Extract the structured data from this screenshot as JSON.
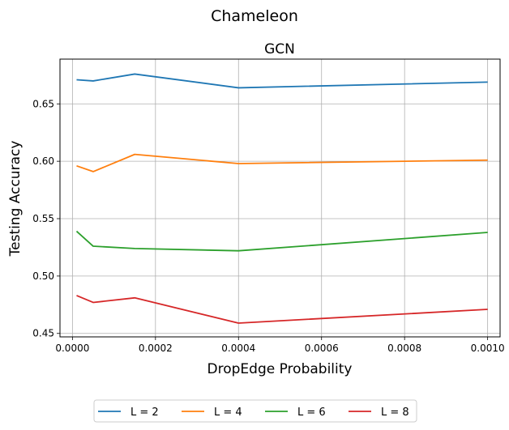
{
  "chart_data": {
    "type": "line",
    "suptitle": "Chameleon",
    "title": "GCN",
    "xlabel": "DropEdge Probability",
    "ylabel": "Testing Accuracy",
    "x": [
      1e-05,
      5e-05,
      0.00015,
      0.0004,
      0.001
    ],
    "xlim": [
      -3e-05,
      0.00103
    ],
    "ylim": [
      0.447,
      0.689
    ],
    "xticks": [
      0.0,
      0.0002,
      0.0004,
      0.0006,
      0.0008,
      0.001
    ],
    "xtick_labels": [
      "0.0000",
      "0.0002",
      "0.0004",
      "0.0006",
      "0.0008",
      "0.0010"
    ],
    "yticks": [
      0.45,
      0.5,
      0.55,
      0.6,
      0.65
    ],
    "ytick_labels": [
      "0.45",
      "0.50",
      "0.55",
      "0.60",
      "0.65"
    ],
    "grid": true,
    "legend_position": "below plot, centered",
    "series": [
      {
        "name": "L = 2",
        "color": "#1f77b4",
        "values": [
          0.671,
          0.67,
          0.676,
          0.664,
          0.669
        ]
      },
      {
        "name": "L = 4",
        "color": "#ff7f0e",
        "values": [
          0.596,
          0.591,
          0.606,
          0.598,
          0.601
        ]
      },
      {
        "name": "L = 6",
        "color": "#2ca02c",
        "values": [
          0.539,
          0.526,
          0.524,
          0.522,
          0.538
        ]
      },
      {
        "name": "L = 8",
        "color": "#d62728",
        "values": [
          0.483,
          0.477,
          0.481,
          0.459,
          0.471
        ]
      }
    ]
  }
}
